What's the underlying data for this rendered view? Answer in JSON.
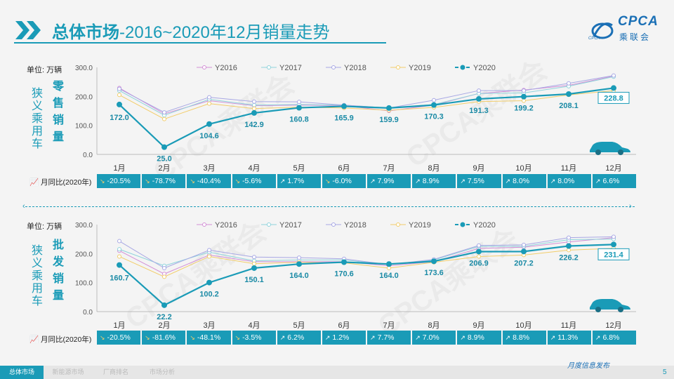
{
  "header": {
    "title_bold": "总体市场",
    "title_rest": "-2016~2020年12月销量走势",
    "logo_text": "CPCA",
    "logo_cn": "乘联会",
    "logo_small": "CPCA"
  },
  "charts": [
    {
      "unit": "单位: 万辆",
      "group_label": "狭义乘用车",
      "metric_label": "零售销量",
      "yoy_label": "月同比(2020年)",
      "highlight_value": "228.8"
    },
    {
      "unit": "单位: 万辆",
      "group_label": "狭义乘用车",
      "metric_label": "批发销量",
      "yoy_label": "月同比(2020年)",
      "highlight_value": "231.4"
    }
  ],
  "chart_data": [
    {
      "type": "line",
      "ylim": [
        0,
        300
      ],
      "yticks": [
        "0.0",
        "100.0",
        "200.0",
        "300.0"
      ],
      "legend_position": "top",
      "categories": [
        "1月",
        "2月",
        "3月",
        "4月",
        "5月",
        "6月",
        "7月",
        "8月",
        "9月",
        "10月",
        "11月",
        "12月"
      ],
      "series": [
        {
          "name": "Y2016",
          "color": "#d38fd6",
          "values": [
            229,
            140,
            185,
            168,
            170,
            168,
            150,
            170,
            210,
            222,
            238,
            270
          ]
        },
        {
          "name": "Y2017",
          "color": "#8fd3dc",
          "values": [
            220,
            135,
            190,
            170,
            172,
            170,
            160,
            172,
            210,
            212,
            235,
            268
          ]
        },
        {
          "name": "Y2018",
          "color": "#a7a7e4",
          "values": [
            226,
            145,
            197,
            182,
            181,
            170,
            160,
            187,
            220,
            220,
            245,
            272
          ]
        },
        {
          "name": "Y2019",
          "color": "#f2cd6a",
          "values": [
            205,
            122,
            175,
            158,
            163,
            160,
            152,
            162,
            182,
            185,
            205,
            220
          ]
        },
        {
          "name": "Y2020",
          "color": "#1a9bb7",
          "values": [
            172.0,
            25.0,
            104.6,
            142.9,
            160.8,
            165.9,
            159.9,
            170.3,
            191.3,
            199.2,
            208.1,
            228.8
          ]
        }
      ],
      "labels": [
        "172.0",
        "25.0",
        "104.6",
        "142.9",
        "160.8",
        "165.9",
        "159.9",
        "170.3",
        "191.3",
        "199.2",
        "208.1",
        "228.8"
      ],
      "yoy": [
        "-20.5%",
        "-78.7%",
        "-40.4%",
        "-5.6%",
        "1.7%",
        "-6.0%",
        "7.9%",
        "8.9%",
        "7.5%",
        "8.0%",
        "8.0%",
        "6.6%"
      ]
    },
    {
      "type": "line",
      "ylim": [
        0,
        300
      ],
      "yticks": [
        "0.0",
        "100.0",
        "200.0",
        "300.0"
      ],
      "legend_position": "top",
      "categories": [
        "1月",
        "2月",
        "3月",
        "4月",
        "5月",
        "6月",
        "7月",
        "8月",
        "9月",
        "10月",
        "11月",
        "12月"
      ],
      "series": [
        {
          "name": "Y2016",
          "color": "#d38fd6",
          "values": [
            210,
            130,
            195,
            172,
            172,
            172,
            158,
            172,
            218,
            222,
            240,
            255
          ]
        },
        {
          "name": "Y2017",
          "color": "#8fd3dc",
          "values": [
            215,
            158,
            205,
            175,
            178,
            178,
            162,
            178,
            225,
            225,
            248,
            250
          ]
        },
        {
          "name": "Y2018",
          "color": "#a7a7e4",
          "values": [
            243,
            150,
            212,
            188,
            186,
            182,
            162,
            180,
            228,
            230,
            255,
            258
          ]
        },
        {
          "name": "Y2019",
          "color": "#f2cd6a",
          "values": [
            190,
            120,
            190,
            165,
            170,
            168,
            150,
            170,
            190,
            195,
            212,
            218
          ]
        },
        {
          "name": "Y2020",
          "color": "#1a9bb7",
          "values": [
            160.7,
            22.2,
            100.2,
            150.1,
            164.0,
            170.6,
            164.0,
            173.6,
            206.9,
            207.2,
            226.2,
            231.4
          ]
        }
      ],
      "labels": [
        "160.7",
        "22.2",
        "100.2",
        "150.1",
        "164.0",
        "170.6",
        "164.0",
        "173.6",
        "206.9",
        "207.2",
        "226.2",
        "231.4"
      ],
      "yoy": [
        "-20.5%",
        "-81.6%",
        "-48.1%",
        "-3.5%",
        "6.2%",
        "1.2%",
        "7.7%",
        "7.0%",
        "8.9%",
        "8.8%",
        "11.3%",
        "6.8%"
      ]
    }
  ],
  "footer": {
    "tabs": [
      "总体市场",
      "新能源市场",
      "厂商排名",
      "市场分析"
    ],
    "brand": "月度信息发布",
    "page": "5"
  },
  "watermark": "CPCA乘联会"
}
